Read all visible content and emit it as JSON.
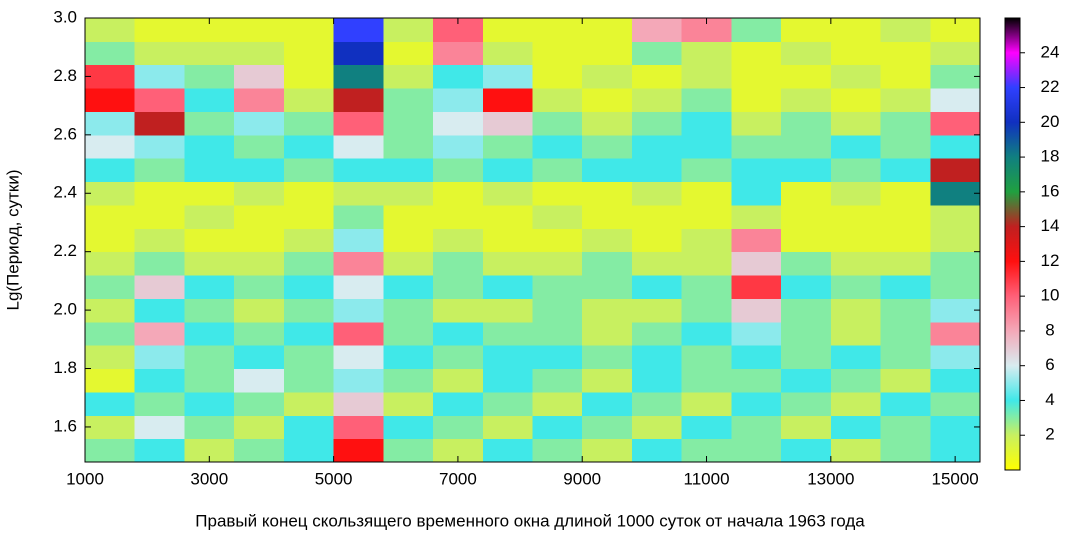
{
  "chart_data": {
    "type": "heatmap",
    "xlabel": "Правый конец скользящего временного окна длиной 1000 суток от начала 1963 года",
    "ylabel": "Lg(Период, сутки)",
    "xlim": [
      1000,
      15400
    ],
    "ylim": [
      1.48,
      3.0
    ],
    "xticks": [
      1000,
      3000,
      5000,
      7000,
      9000,
      11000,
      13000,
      15000
    ],
    "yticks": [
      1.6,
      1.8,
      {
        "value": 2.0,
        "label": "2.0"
      },
      2.2,
      2.4,
      2.6,
      2.8,
      {
        "value": 3.0,
        "label": "3.0"
      }
    ],
    "xbins": [
      1000,
      1800,
      2600,
      3400,
      4200,
      5000,
      5800,
      6600,
      7400,
      8200,
      9000,
      9800,
      10600,
      11400,
      12200,
      13000,
      13800,
      14600,
      15400
    ],
    "ybins": [
      1.48,
      1.56,
      1.64,
      1.72,
      1.8,
      1.88,
      1.96,
      2.04,
      2.12,
      2.2,
      2.28,
      2.36,
      2.44,
      2.52,
      2.6,
      2.68,
      2.76,
      2.84,
      2.92,
      3.0
    ],
    "z": [
      [
        3,
        4,
        2,
        3,
        4,
        12,
        3,
        2,
        4,
        3,
        2,
        4,
        3,
        3,
        4,
        2,
        3,
        4
      ],
      [
        2,
        6,
        3,
        2,
        4,
        10,
        4,
        3,
        2,
        4,
        3,
        2,
        4,
        3,
        2,
        4,
        3,
        4
      ],
      [
        4,
        3,
        4,
        3,
        2,
        7,
        2,
        4,
        3,
        2,
        4,
        3,
        2,
        4,
        3,
        2,
        4,
        3
      ],
      [
        1,
        4,
        3,
        6,
        3,
        5,
        3,
        2,
        4,
        3,
        2,
        4,
        3,
        3,
        4,
        3,
        2,
        4
      ],
      [
        2,
        5,
        3,
        4,
        3,
        6,
        4,
        3,
        4,
        4,
        3,
        4,
        3,
        4,
        3,
        4,
        3,
        5
      ],
      [
        3,
        8,
        4,
        3,
        4,
        10,
        3,
        4,
        3,
        3,
        2,
        3,
        4,
        5,
        3,
        2,
        3,
        9
      ],
      [
        2,
        4,
        3,
        2,
        3,
        5,
        3,
        2,
        2,
        3,
        2,
        2,
        3,
        7,
        3,
        2,
        3,
        5
      ],
      [
        3,
        7,
        4,
        3,
        4,
        6,
        4,
        3,
        4,
        3,
        3,
        4,
        3,
        11,
        4,
        3,
        4,
        3
      ],
      [
        2,
        3,
        2,
        2,
        3,
        9,
        2,
        3,
        2,
        2,
        3,
        2,
        2,
        7,
        3,
        2,
        2,
        3
      ],
      [
        1,
        2,
        1,
        1,
        2,
        5,
        1,
        2,
        1,
        1,
        2,
        1,
        2,
        9,
        1,
        1,
        1,
        2
      ],
      [
        1,
        1,
        2,
        1,
        1,
        3,
        1,
        1,
        1,
        2,
        1,
        1,
        1,
        2,
        1,
        1,
        1,
        2
      ],
      [
        2,
        1,
        1,
        2,
        1,
        2,
        2,
        1,
        2,
        1,
        1,
        2,
        1,
        4,
        1,
        2,
        1,
        18
      ],
      [
        4,
        3,
        4,
        4,
        3,
        4,
        4,
        3,
        4,
        3,
        4,
        4,
        3,
        4,
        4,
        3,
        4,
        14
      ],
      [
        6,
        5,
        4,
        3,
        4,
        6,
        3,
        5,
        3,
        4,
        3,
        4,
        4,
        3,
        3,
        4,
        3,
        4
      ],
      [
        5,
        14,
        3,
        5,
        3,
        10,
        3,
        6,
        7,
        3,
        2,
        3,
        4,
        2,
        3,
        2,
        3,
        10
      ],
      [
        12,
        10,
        4,
        9,
        2,
        14,
        3,
        5,
        12,
        2,
        1,
        2,
        3,
        1,
        2,
        1,
        2,
        6
      ],
      [
        11,
        5,
        3,
        7,
        1,
        18,
        2,
        4,
        5,
        1,
        2,
        1,
        2,
        1,
        1,
        2,
        1,
        3
      ],
      [
        3,
        2,
        2,
        2,
        1,
        20,
        1,
        9,
        2,
        1,
        1,
        3,
        2,
        1,
        2,
        1,
        1,
        2
      ],
      [
        2,
        1,
        1,
        1,
        1,
        22,
        2,
        10,
        1,
        1,
        1,
        8,
        9,
        3,
        1,
        1,
        2,
        1
      ]
    ],
    "clim": [
      0,
      26
    ],
    "colorbar_ticks": [
      2,
      4,
      6,
      8,
      10,
      12,
      14,
      16,
      18,
      20,
      22,
      24
    ],
    "colorscale": [
      "#ffff00",
      "#c8f060",
      "#40e8e8",
      "#d8ecf0",
      "#f4a8b8",
      "#ff6078",
      "#ff1010",
      "#c02020",
      "#20a040",
      "#108080",
      "#1030c0",
      "#3040ff",
      "#ff00ff",
      "#000000"
    ]
  }
}
